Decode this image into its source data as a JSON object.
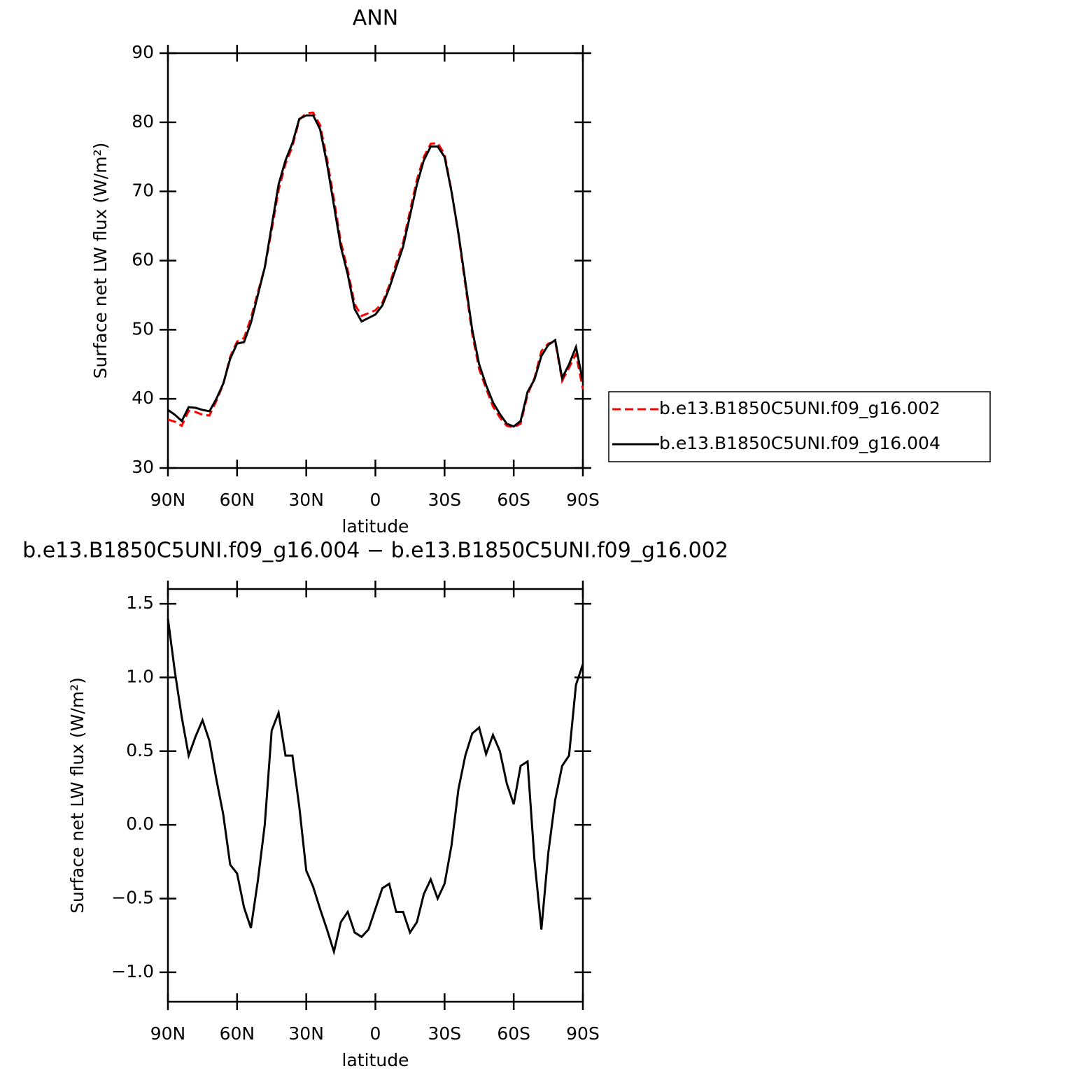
{
  "chart_data": [
    {
      "type": "line",
      "title": "ANN",
      "x_label": "latitude",
      "y_label": "Surface net LW flux (W/m²)",
      "x": [
        90,
        87,
        84,
        81,
        78,
        75,
        72,
        69,
        66,
        63,
        60,
        57,
        54,
        51,
        48,
        45,
        42,
        39,
        36,
        33,
        30,
        27,
        24,
        21,
        18,
        15,
        12,
        9,
        6,
        3,
        0,
        -3,
        -6,
        -9,
        -12,
        -15,
        -18,
        -21,
        -24,
        -27,
        -30,
        -33,
        -36,
        -39,
        -42,
        -45,
        -48,
        -51,
        -54,
        -57,
        -60,
        -63,
        -66,
        -69,
        -72,
        -75,
        -78,
        -81,
        -84,
        -87,
        -90
      ],
      "series": [
        {
          "name": "b.e13.B1850C5UNI.f09_g16.002",
          "color": "#ff0000",
          "style": "dashed",
          "values": [
            37.0,
            36.7,
            36.1,
            38.3,
            38.1,
            37.7,
            37.6,
            39.7,
            42.1,
            46.1,
            48.3,
            48.8,
            51.7,
            55.4,
            59.0,
            64.4,
            70.2,
            74.0,
            76.5,
            80.4,
            81.3,
            81.4,
            79.6,
            74.7,
            68.9,
            62.7,
            58.6,
            53.7,
            52.0,
            52.4,
            52.8,
            53.9,
            56.4,
            59.6,
            62.6,
            67.2,
            71.7,
            75.0,
            76.9,
            77.0,
            75.4,
            70.1,
            63.8,
            56.5,
            49.4,
            44.3,
            41.5,
            38.9,
            37.3,
            36.1,
            35.9,
            36.4,
            40.6,
            43.0,
            46.9,
            48.0,
            48.3,
            42.6,
            44.5,
            46.5,
            41.4
          ]
        },
        {
          "name": "b.e13.B1850C5UNI.f09_g16.004",
          "color": "#000000",
          "style": "solid",
          "values": [
            38.4,
            37.7,
            36.8,
            38.8,
            38.7,
            38.4,
            38.2,
            40.0,
            42.2,
            45.8,
            48.0,
            48.2,
            51.0,
            55.0,
            59.0,
            65.0,
            71.0,
            74.5,
            77.0,
            80.5,
            81.0,
            81.0,
            79.0,
            74.0,
            68.0,
            62.0,
            58.0,
            53.0,
            51.2,
            51.7,
            52.2,
            53.5,
            56.0,
            59.0,
            62.0,
            66.5,
            71.0,
            74.5,
            76.5,
            76.5,
            75.0,
            70.0,
            64.0,
            57.0,
            50.0,
            45.0,
            42.0,
            39.5,
            37.8,
            36.4,
            36.0,
            36.8,
            41.0,
            42.8,
            46.2,
            47.8,
            48.5,
            43.0,
            45.0,
            47.5,
            42.5
          ]
        }
      ],
      "xlim": [
        90,
        -90
      ],
      "xticks": [
        {
          "value": 90,
          "label": "90N"
        },
        {
          "value": 60,
          "label": "60N"
        },
        {
          "value": 30,
          "label": "30N"
        },
        0,
        {
          "value": -30,
          "label": "30S"
        },
        {
          "value": -60,
          "label": "60S"
        },
        {
          "value": -90,
          "label": "90S"
        }
      ],
      "ylim": [
        30,
        90
      ],
      "yticks": [
        30,
        40,
        50,
        60,
        70,
        80,
        90
      ],
      "legend": "right"
    },
    {
      "type": "line",
      "title": "b.e13.B1850C5UNI.f09_g16.004 − b.e13.B1850C5UNI.f09_g16.002",
      "x_label": "latitude",
      "y_label": "Surface net LW flux (W/m²)",
      "x": [
        90,
        87,
        84,
        81,
        78,
        75,
        72,
        69,
        66,
        63,
        60,
        57,
        54,
        51,
        48,
        45,
        42,
        39,
        36,
        33,
        30,
        27,
        24,
        21,
        18,
        15,
        12,
        9,
        6,
        3,
        0,
        -3,
        -6,
        -9,
        -12,
        -15,
        -18,
        -21,
        -24,
        -27,
        -30,
        -33,
        -36,
        -39,
        -42,
        -45,
        -48,
        -51,
        -54,
        -57,
        -60,
        -63,
        -66,
        -69,
        -72,
        -75,
        -78,
        -81,
        -84,
        -87,
        -90
      ],
      "series": [
        {
          "color": "#000000",
          "style": "solid",
          "values": [
            1.4,
            1.04,
            0.73,
            0.47,
            0.6,
            0.71,
            0.57,
            0.31,
            0.07,
            -0.27,
            -0.33,
            -0.56,
            -0.7,
            -0.38,
            0.0,
            0.64,
            0.76,
            0.47,
            0.47,
            0.12,
            -0.31,
            -0.42,
            -0.57,
            -0.71,
            -0.86,
            -0.66,
            -0.59,
            -0.73,
            -0.76,
            -0.71,
            -0.57,
            -0.43,
            -0.4,
            -0.59,
            -0.59,
            -0.73,
            -0.66,
            -0.47,
            -0.37,
            -0.5,
            -0.4,
            -0.14,
            0.24,
            0.47,
            0.62,
            0.66,
            0.48,
            0.61,
            0.5,
            0.28,
            0.14,
            0.4,
            0.43,
            -0.24,
            -0.71,
            -0.19,
            0.17,
            0.4,
            0.47,
            0.95,
            1.09
          ]
        }
      ],
      "xlim": [
        90,
        -90
      ],
      "xticks": [
        {
          "value": 90,
          "label": "90N"
        },
        {
          "value": 60,
          "label": "60N"
        },
        {
          "value": 30,
          "label": "30N"
        },
        0,
        {
          "value": -30,
          "label": "30S"
        },
        {
          "value": -60,
          "label": "60S"
        },
        {
          "value": -90,
          "label": "90S"
        }
      ],
      "ylim": [
        -1.2,
        1.6
      ],
      "yticks": [
        {
          "value": -1.0,
          "label": "−1.0"
        },
        {
          "value": -0.5,
          "label": "−0.5"
        },
        {
          "value": 0.0,
          "label": "0.0"
        },
        0.5,
        {
          "value": 1.0,
          "label": "1.0"
        },
        1.5
      ]
    }
  ]
}
